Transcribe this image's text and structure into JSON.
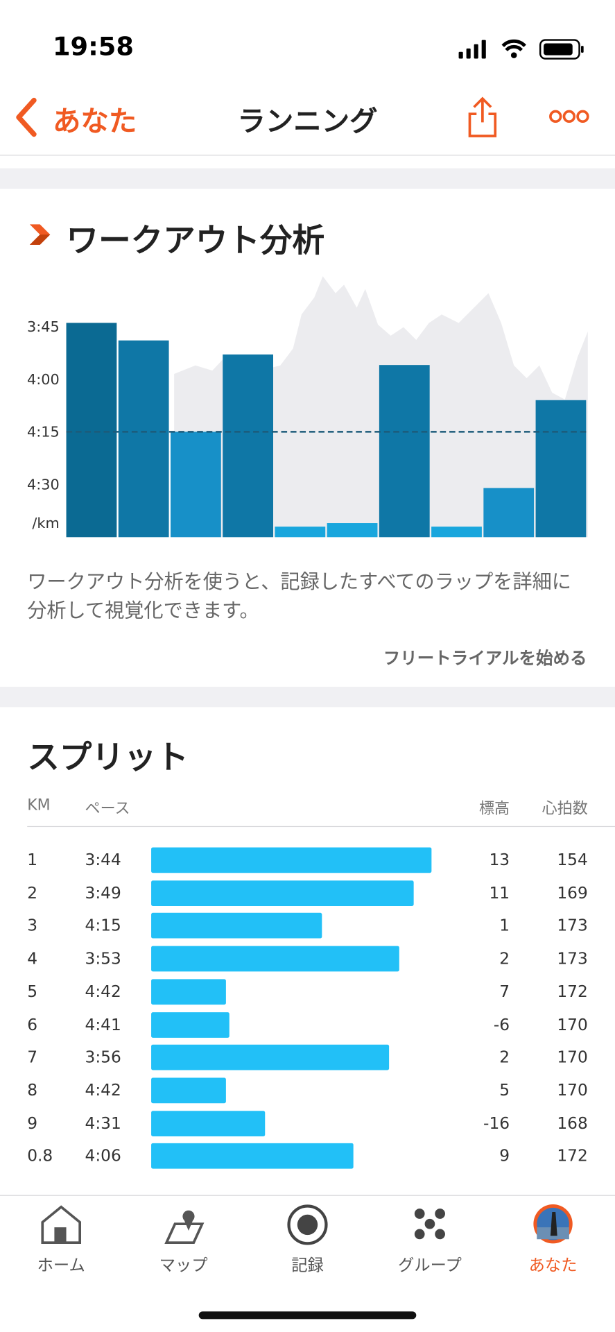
{
  "status_bar": {
    "time": "19:58"
  },
  "nav": {
    "back": "あなた",
    "title": "ランニング"
  },
  "analysis": {
    "title": "ワークアウト分析",
    "chart": {
      "type": "bar",
      "ylim": [
        210,
        285
      ],
      "yticks": [
        {
          "value": 225,
          "label": "3:45"
        },
        {
          "value": 240,
          "label": "4:00"
        },
        {
          "value": 255,
          "label": "4:15"
        },
        {
          "value": 270,
          "label": "4:30"
        }
      ],
      "y_unit": "/km",
      "bar_colors": [
        "#0b6a93",
        "#0f77a6",
        "#1790c8",
        "#0f77a6",
        "#19a6dd",
        "#19a6dd",
        "#0f77a6",
        "#19a6dd",
        "#1790c8",
        "#0f77a6"
      ],
      "reference_line_color": "#1d5b7a"
    },
    "description": "ワークアウト分析を使うと、記録したすべてのラップを詳細に分析して視覚化できます。",
    "cta": "フリートライアルを始める"
  },
  "splits": {
    "title": "スプリット",
    "columns": [
      "KM",
      "ペース",
      "標高",
      "心拍数"
    ],
    "bar_color": "#22c0f7",
    "rows": [
      {
        "km": 1,
        "pace": {
          "value": 224,
          "label": "3:44"
        },
        "elevation": 13,
        "heart_rate": 154
      },
      {
        "km": 2,
        "pace": {
          "value": 229,
          "label": "3:49"
        },
        "elevation": 11,
        "heart_rate": 169
      },
      {
        "km": 3,
        "pace": {
          "value": 255,
          "label": "4:15"
        },
        "elevation": 1,
        "heart_rate": 173
      },
      {
        "km": 4,
        "pace": {
          "value": 233,
          "label": "3:53"
        },
        "elevation": 2,
        "heart_rate": 173
      },
      {
        "km": 5,
        "pace": {
          "value": 282,
          "label": "4:42"
        },
        "elevation": 7,
        "heart_rate": 172
      },
      {
        "km": 6,
        "pace": {
          "value": 281,
          "label": "4:41"
        },
        "elevation": -6,
        "heart_rate": 170
      },
      {
        "km": 7,
        "pace": {
          "value": 236,
          "label": "3:56"
        },
        "elevation": 2,
        "heart_rate": 170
      },
      {
        "km": 8,
        "pace": {
          "value": 282,
          "label": "4:42"
        },
        "elevation": 5,
        "heart_rate": 170
      },
      {
        "km": 9,
        "pace": {
          "value": 271,
          "label": "4:31"
        },
        "elevation": -16,
        "heart_rate": 168
      },
      {
        "km": 0.8,
        "pace": {
          "value": 246,
          "label": "4:06"
        },
        "elevation": 9,
        "heart_rate": 172
      }
    ]
  },
  "tab_bar": {
    "tabs": [
      "ホーム",
      "マップ",
      "記録",
      "グループ",
      "あなた"
    ]
  }
}
